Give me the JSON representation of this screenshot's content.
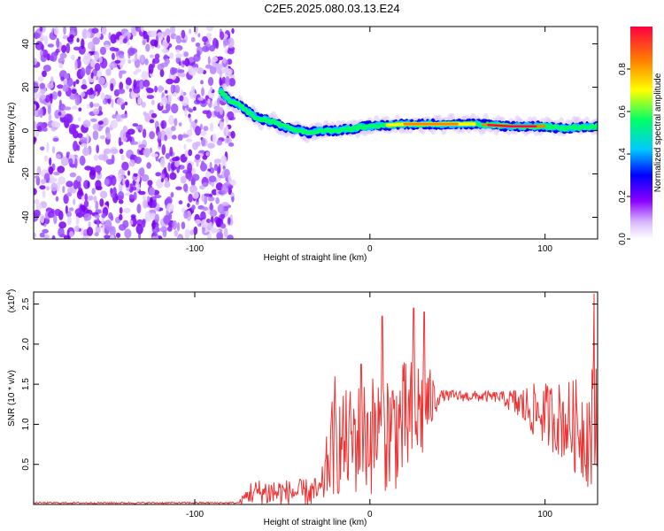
{
  "title": "C2E5.2025.080.03.13.E24",
  "chart_data": [
    {
      "type": "heatmap",
      "xlabel": "Height of straight line (km)",
      "ylabel": "Frequency (Hz)",
      "xlim": [
        -192,
        130
      ],
      "ylim": [
        -50,
        48
      ],
      "x_ticks": [
        -100,
        0,
        100
      ],
      "x_tick_labels": [
        "-100",
        "0",
        "100"
      ],
      "y_ticks": [
        -40,
        -20,
        0,
        20,
        40
      ],
      "y_tick_labels": [
        "-40",
        "-20",
        "0",
        "20",
        "40"
      ],
      "noise_region_x": [
        -192,
        -80
      ],
      "signal_band": [
        {
          "x": -85,
          "freq": 18
        },
        {
          "x": -80,
          "freq": 14
        },
        {
          "x": -75,
          "freq": 12
        },
        {
          "x": -70,
          "freq": 9
        },
        {
          "x": -65,
          "freq": 6
        },
        {
          "x": -60,
          "freq": 5
        },
        {
          "x": -55,
          "freq": 4
        },
        {
          "x": -50,
          "freq": 2
        },
        {
          "x": -45,
          "freq": 1
        },
        {
          "x": -40,
          "freq": 0
        },
        {
          "x": -35,
          "freq": -1
        },
        {
          "x": -30,
          "freq": 0
        },
        {
          "x": -20,
          "freq": 0
        },
        {
          "x": -10,
          "freq": 1
        },
        {
          "x": 0,
          "freq": 2
        },
        {
          "x": 20,
          "freq": 3
        },
        {
          "x": 40,
          "freq": 3
        },
        {
          "x": 60,
          "freq": 3
        },
        {
          "x": 80,
          "freq": 2
        },
        {
          "x": 100,
          "freq": 2
        },
        {
          "x": 110,
          "freq": 1
        },
        {
          "x": 130,
          "freq": 2
        }
      ],
      "colorbar": {
        "label": "Normalized spectral amplitude",
        "range": [
          0,
          1
        ],
        "ticks": [
          0.0,
          0.2,
          0.4,
          0.6,
          0.8
        ],
        "tick_labels": [
          "0.0",
          "0.2",
          "0.4",
          "0.6",
          "0.8"
        ],
        "colors": [
          "#ffffff",
          "#8a00ff",
          "#0000ff",
          "#00c8ff",
          "#00ff66",
          "#ffff00",
          "#ff8000",
          "#ff0040"
        ]
      }
    },
    {
      "type": "line",
      "xlabel": "Height of straight line (km)",
      "ylabel": "SNR (10 * v/v)",
      "y_multiplier": "(x10",
      "y_multiplier_exp": "4",
      "y_multiplier_close": ")",
      "xlim": [
        -192,
        130
      ],
      "ylim": [
        0,
        2.65
      ],
      "x_ticks": [
        -100,
        0,
        100
      ],
      "x_tick_labels": [
        "-100",
        "0",
        "100"
      ],
      "y_ticks": [
        0.5,
        1.0,
        1.5,
        2.0,
        2.5
      ],
      "y_tick_labels": [
        "0.5",
        "1.0",
        "1.5",
        "2.0",
        "2.5"
      ],
      "line_color": "#ee3333",
      "envelope": [
        {
          "x": -192,
          "base": 0.02,
          "amp": 0.01
        },
        {
          "x": -75,
          "base": 0.02,
          "amp": 0.01
        },
        {
          "x": -68,
          "base": 0.15,
          "amp": 0.15
        },
        {
          "x": -55,
          "base": 0.15,
          "amp": 0.2
        },
        {
          "x": -45,
          "base": 0.15,
          "amp": 0.15
        },
        {
          "x": -28,
          "base": 0.15,
          "amp": 0.2
        },
        {
          "x": -22,
          "base": 0.7,
          "amp": 0.6
        },
        {
          "x": -10,
          "base": 0.8,
          "amp": 0.7
        },
        {
          "x": 5,
          "base": 0.9,
          "amp": 0.8
        },
        {
          "x": 20,
          "base": 1.0,
          "amp": 0.8
        },
        {
          "x": 30,
          "base": 1.2,
          "amp": 0.7
        },
        {
          "x": 40,
          "base": 1.36,
          "amp": 0.07
        },
        {
          "x": 75,
          "base": 1.34,
          "amp": 0.07
        },
        {
          "x": 90,
          "base": 1.2,
          "amp": 0.3
        },
        {
          "x": 110,
          "base": 1.05,
          "amp": 0.5
        },
        {
          "x": 125,
          "base": 0.9,
          "amp": 0.7
        },
        {
          "x": 130,
          "base": 1.0,
          "amp": 1.2
        }
      ],
      "spikes": [
        {
          "x": 7,
          "y": 2.35
        },
        {
          "x": 25,
          "y": 2.45
        },
        {
          "x": 31,
          "y": 2.4
        },
        {
          "x": -20,
          "y": 1.6
        },
        {
          "x": -5,
          "y": 1.75
        },
        {
          "x": 128,
          "y": 2.63
        }
      ]
    }
  ]
}
